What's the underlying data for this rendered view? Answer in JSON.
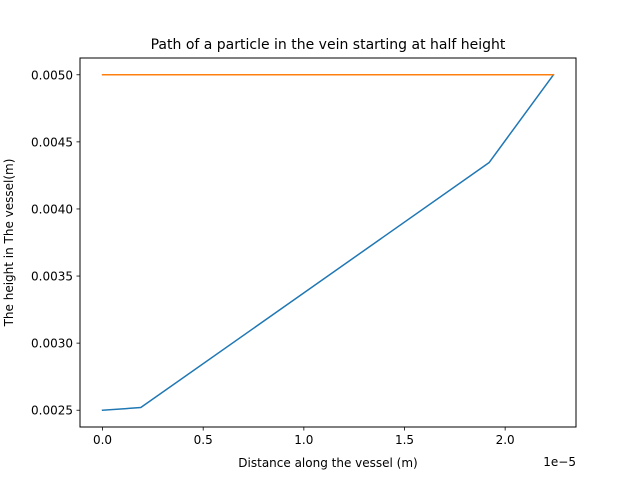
{
  "chart_data": {
    "type": "line",
    "title": "Path of a particle in the vein starting at half height",
    "xlabel": "Distance along the vessel (m)",
    "ylabel": "The height in The vessel(m)",
    "x_offset_label": "1e−5",
    "xlim": [
      -1.12e-06,
      2.352e-05
    ],
    "ylim": [
      0.002375,
      0.005125
    ],
    "x_ticks": [
      0,
      5e-06,
      1e-05,
      1.5e-05,
      2e-05
    ],
    "x_tick_labels": [
      "0.0",
      "0.5",
      "1.0",
      "1.5",
      "2.0"
    ],
    "y_ticks": [
      0.0025,
      0.003,
      0.0035,
      0.004,
      0.0045,
      0.005
    ],
    "y_tick_labels": [
      "0.0025",
      "0.0030",
      "0.0035",
      "0.0040",
      "0.0045",
      "0.0050"
    ],
    "grid": false,
    "series": [
      {
        "color": "#1f77b4",
        "x": [
          0,
          1.9e-06,
          1.92e-05,
          2.24e-05
        ],
        "y": [
          0.0025,
          0.00252,
          0.004345,
          0.005
        ]
      },
      {
        "color": "#ff7f0e",
        "x": [
          0,
          2.24e-05
        ],
        "y": [
          0.005,
          0.005
        ]
      }
    ]
  }
}
